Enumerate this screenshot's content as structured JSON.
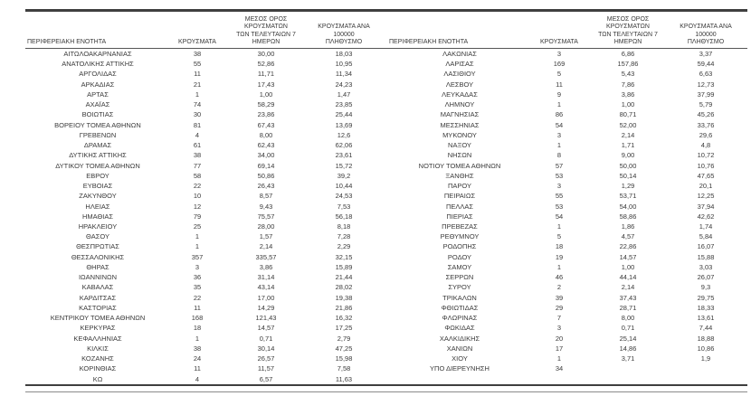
{
  "page": {
    "background_color": "#ffffff",
    "rule_color": "#3f3f3f",
    "text_color": "#3a3a3a"
  },
  "headers": {
    "region": "ΠΕΡΙΦΕΡΕΙΑΚΗ ΕΝΟΤΗΤΑ",
    "cases": "ΚΡΟΥΣΜΑΤΑ",
    "avg7": "ΜΕΣΟΣ ΟΡΟΣ ΚΡΟΥΣΜΑΤΩΝ\nΤΩΝ ΤΕΛΕΥΤΑΙΩΝ 7\nΗΜΕΡΩΝ",
    "per100k": "ΚΡΟΥΣΜΑΤΑ ΑΝΑ 100000\nΠΛΗΘΥΣΜΟ"
  },
  "tables": [
    {
      "id": "left",
      "rows": [
        [
          "ΑΙΤΩΛΟΑΚΑΡΝΑΝΙΑΣ",
          "38",
          "30,00",
          "18,03"
        ],
        [
          "ΑΝΑΤΟΛΙΚΗΣ ΑΤΤΙΚΗΣ",
          "55",
          "52,86",
          "10,95"
        ],
        [
          "ΑΡΓΟΛΙΔΑΣ",
          "11",
          "11,71",
          "11,34"
        ],
        [
          "ΑΡΚΑΔΙΑΣ",
          "21",
          "17,43",
          "24,23"
        ],
        [
          "ΑΡΤΑΣ",
          "1",
          "1,00",
          "1,47"
        ],
        [
          "ΑΧΑΪΑΣ",
          "74",
          "58,29",
          "23,85"
        ],
        [
          "ΒΟΙΩΤΙΑΣ",
          "30",
          "23,86",
          "25,44"
        ],
        [
          "ΒΟΡΕΙΟΥ ΤΟΜΕΑ ΑΘΗΝΩΝ",
          "81",
          "67,43",
          "13,69"
        ],
        [
          "ΓΡΕΒΕΝΩΝ",
          "4",
          "8,00",
          "12,6"
        ],
        [
          "ΔΡΑΜΑΣ",
          "61",
          "62,43",
          "62,06"
        ],
        [
          "ΔΥΤΙΚΗΣ ΑΤΤΙΚΗΣ",
          "38",
          "34,00",
          "23,61"
        ],
        [
          "ΔΥΤΙΚΟΥ ΤΟΜΕΑ ΑΘΗΝΩΝ",
          "77",
          "69,14",
          "15,72"
        ],
        [
          "ΕΒΡΟΥ",
          "58",
          "50,86",
          "39,2"
        ],
        [
          "ΕΥΒΟΙΑΣ",
          "22",
          "26,43",
          "10,44"
        ],
        [
          "ΖΑΚΥΝΘΟΥ",
          "10",
          "8,57",
          "24,53"
        ],
        [
          "ΗΛΕΙΑΣ",
          "12",
          "9,43",
          "7,53"
        ],
        [
          "ΗΜΑΘΙΑΣ",
          "79",
          "75,57",
          "56,18"
        ],
        [
          "ΗΡΑΚΛΕΙΟΥ",
          "25",
          "28,00",
          "8,18"
        ],
        [
          "ΘΑΣΟΥ",
          "1",
          "1,57",
          "7,28"
        ],
        [
          "ΘΕΣΠΡΩΤΙΑΣ",
          "1",
          "2,14",
          "2,29"
        ],
        [
          "ΘΕΣΣΑΛΟΝΙΚΗΣ",
          "357",
          "335,57",
          "32,15"
        ],
        [
          "ΘΗΡΑΣ",
          "3",
          "3,86",
          "15,89"
        ],
        [
          "ΙΩΑΝΝΙΝΩΝ",
          "36",
          "31,14",
          "21,44"
        ],
        [
          "ΚΑΒΑΛΑΣ",
          "35",
          "43,14",
          "28,02"
        ],
        [
          "ΚΑΡΔΙΤΣΑΣ",
          "22",
          "17,00",
          "19,38"
        ],
        [
          "ΚΑΣΤΟΡΙΑΣ",
          "11",
          "14,29",
          "21,86"
        ],
        [
          "ΚΕΝΤΡΙΚΟΥ ΤΟΜΕΑ ΑΘΗΝΩΝ",
          "168",
          "121,43",
          "16,32"
        ],
        [
          "ΚΕΡΚΥΡΑΣ",
          "18",
          "14,57",
          "17,25"
        ],
        [
          "ΚΕΦΑΛΛΗΝΙΑΣ",
          "1",
          "0,71",
          "2,79"
        ],
        [
          "ΚΙΛΚΙΣ",
          "38",
          "30,14",
          "47,25"
        ],
        [
          "ΚΟΖΑΝΗΣ",
          "24",
          "26,57",
          "15,98"
        ],
        [
          "ΚΟΡΙΝΘΙΑΣ",
          "11",
          "11,57",
          "7,58"
        ],
        [
          "ΚΩ",
          "4",
          "6,57",
          "11,63"
        ]
      ]
    },
    {
      "id": "right",
      "rows": [
        [
          "ΛΑΚΩΝΙΑΣ",
          "3",
          "6,86",
          "3,37"
        ],
        [
          "ΛΑΡΙΣΑΣ",
          "169",
          "157,86",
          "59,44"
        ],
        [
          "ΛΑΣΙΘΙΟΥ",
          "5",
          "5,43",
          "6,63"
        ],
        [
          "ΛΕΣΒΟΥ",
          "11",
          "7,86",
          "12,73"
        ],
        [
          "ΛΕΥΚΑΔΑΣ",
          "9",
          "3,86",
          "37,99"
        ],
        [
          "ΛΗΜΝΟΥ",
          "1",
          "1,00",
          "5,79"
        ],
        [
          "ΜΑΓΝΗΣΙΑΣ",
          "86",
          "80,71",
          "45,26"
        ],
        [
          "ΜΕΣΣΗΝΙΑΣ",
          "54",
          "52,00",
          "33,76"
        ],
        [
          "ΜΥΚΟΝΟΥ",
          "3",
          "2,14",
          "29,6"
        ],
        [
          "ΝΑΞΟΥ",
          "1",
          "1,71",
          "4,8"
        ],
        [
          "ΝΗΣΩΝ",
          "8",
          "9,00",
          "10,72"
        ],
        [
          "ΝΟΤΙΟΥ ΤΟΜΕΑ ΑΘΗΝΩΝ",
          "57",
          "50,00",
          "10,76"
        ],
        [
          "ΞΑΝΘΗΣ",
          "53",
          "50,14",
          "47,65"
        ],
        [
          "ΠΑΡΟΥ",
          "3",
          "1,29",
          "20,1"
        ],
        [
          "ΠΕΙΡΑΙΩΣ",
          "55",
          "53,71",
          "12,25"
        ],
        [
          "ΠΕΛΛΑΣ",
          "53",
          "54,00",
          "37,94"
        ],
        [
          "ΠΙΕΡΙΑΣ",
          "54",
          "58,86",
          "42,62"
        ],
        [
          "ΠΡΕΒΕΖΑΣ",
          "1",
          "1,86",
          "1,74"
        ],
        [
          "ΡΕΘΥΜΝΟΥ",
          "5",
          "4,57",
          "5,84"
        ],
        [
          "ΡΟΔΟΠΗΣ",
          "18",
          "22,86",
          "16,07"
        ],
        [
          "ΡΟΔΟΥ",
          "19",
          "14,57",
          "15,88"
        ],
        [
          "ΣΑΜΟΥ",
          "1",
          "1,00",
          "3,03"
        ],
        [
          "ΣΕΡΡΩΝ",
          "46",
          "44,14",
          "26,07"
        ],
        [
          "ΣΥΡΟΥ",
          "2",
          "2,14",
          "9,3"
        ],
        [
          "ΤΡΙΚΑΛΩΝ",
          "39",
          "37,43",
          "29,75"
        ],
        [
          "ΦΘΙΩΤΙΔΑΣ",
          "29",
          "28,71",
          "18,33"
        ],
        [
          "ΦΛΩΡΙΝΑΣ",
          "7",
          "8,00",
          "13,61"
        ],
        [
          "ΦΩΚΙΔΑΣ",
          "3",
          "0,71",
          "7,44"
        ],
        [
          "ΧΑΛΚΙΔΙΚΗΣ",
          "20",
          "25,14",
          "18,88"
        ],
        [
          "ΧΑΝΙΩΝ",
          "17",
          "14,86",
          "10,86"
        ],
        [
          "ΧΙΟΥ",
          "1",
          "3,71",
          "1,9"
        ],
        [
          "ΥΠΟ ΔΙΕΡΕΥΝΗΣΗ",
          "34",
          "",
          ""
        ]
      ]
    }
  ]
}
